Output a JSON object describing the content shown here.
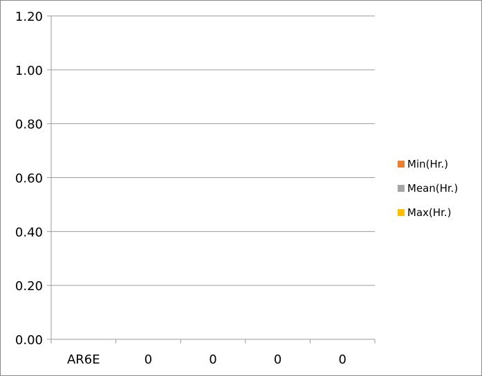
{
  "chart_data": {
    "type": "bar",
    "title": "",
    "xlabel": "",
    "ylabel": "",
    "categories": [
      "AR6E",
      "0",
      "0",
      "0",
      "0"
    ],
    "ylim": [
      0,
      1.2
    ],
    "yticks": [
      "0.00",
      "0.20",
      "0.40",
      "0.60",
      "0.80",
      "1.00",
      "1.20"
    ],
    "grid": true,
    "legend_position": "right",
    "series": [
      {
        "name": "Min(Hr.)",
        "color": "#ED7D31",
        "values": [
          0,
          0,
          0,
          0,
          0
        ]
      },
      {
        "name": "Mean(Hr.)",
        "color": "#A5A5A5",
        "values": [
          0,
          0,
          0,
          0,
          0
        ]
      },
      {
        "name": "Max(Hr.)",
        "color": "#FFC000",
        "values": [
          0,
          0,
          0,
          0,
          0
        ]
      }
    ]
  }
}
